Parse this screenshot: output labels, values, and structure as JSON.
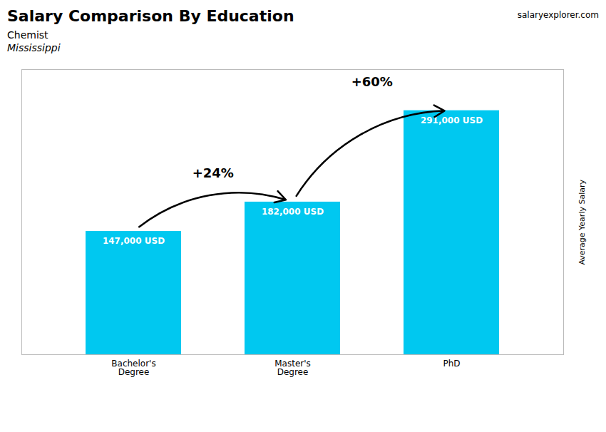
{
  "chart_data": {
    "type": "bar",
    "title": "Salary Comparison By Education",
    "subtitle": [
      "Chemist",
      "Mississippi"
    ],
    "source": "salaryexplorer.com",
    "ylabel": "Average Yearly Salary",
    "categories": [
      "Bachelor's\nDegree",
      "Master's\nDegree",
      "PhD"
    ],
    "values": [
      147000,
      182000,
      291000
    ],
    "value_labels": [
      "147,000 USD",
      "182,000 USD",
      "291,000 USD"
    ],
    "data_labels": true,
    "color": "#00C8F0",
    "annotations": [
      "+24%",
      "+60%"
    ],
    "ylim": [
      0,
      340000
    ],
    "tick_labels": "x",
    "grid": false
  }
}
